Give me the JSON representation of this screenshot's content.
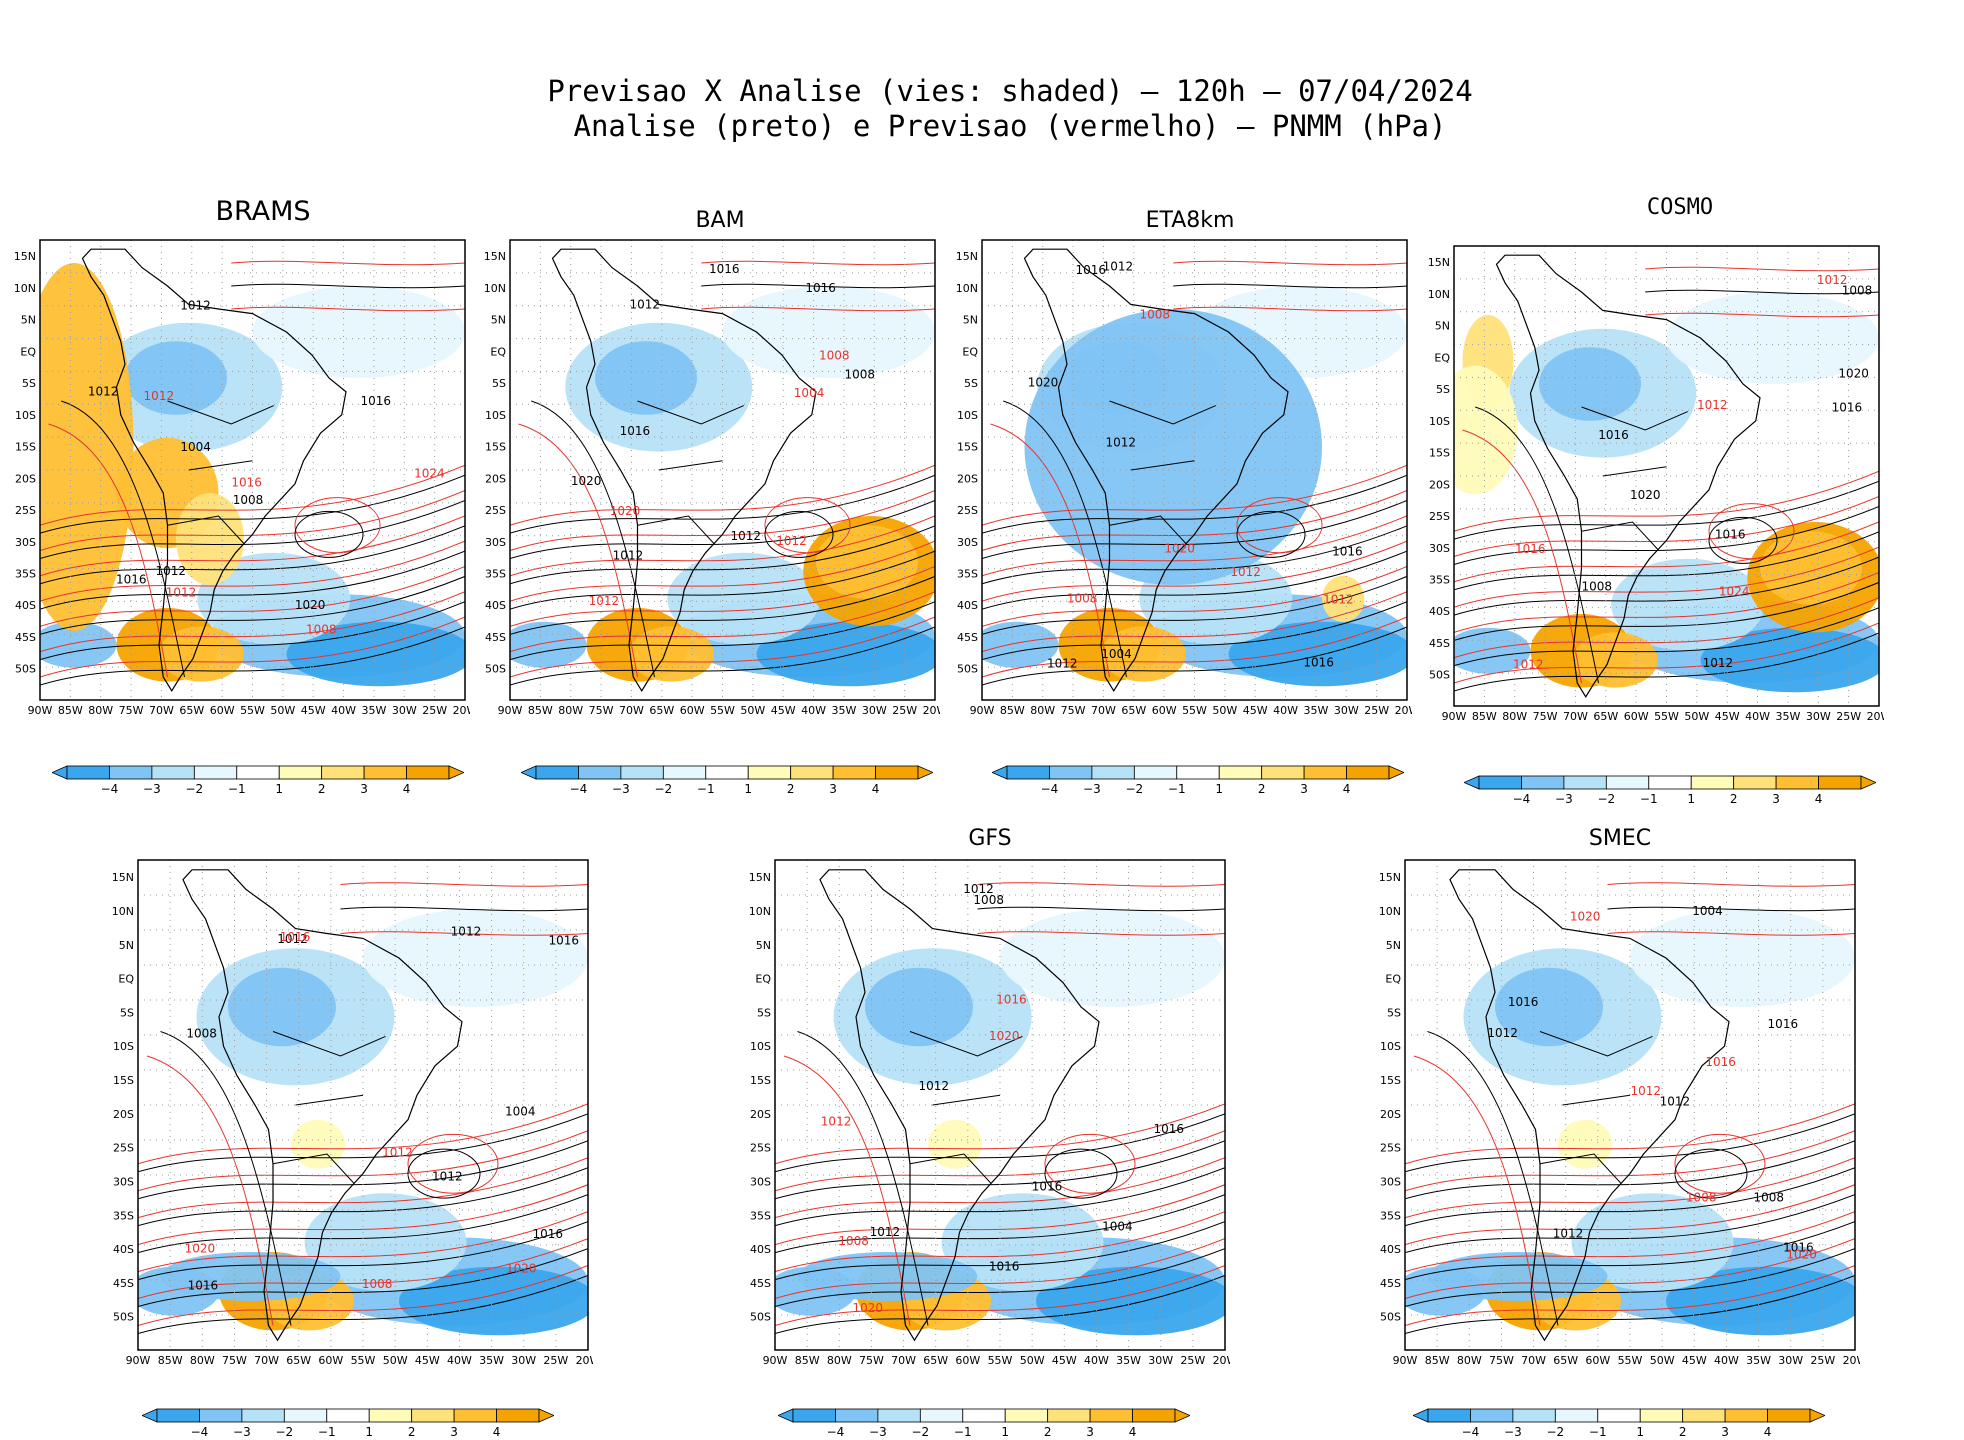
{
  "figure": {
    "title_line1": "Previsao X Analise (vies: shaded) – 120h – 07/04/2024",
    "title_line2": "Analise (preto) e Previsao (vermelho) – PNMM (hPa)"
  },
  "axes": {
    "lat_ticks": [
      "15N",
      "10N",
      "5N",
      "EQ",
      "5S",
      "10S",
      "15S",
      "20S",
      "25S",
      "30S",
      "35S",
      "40S",
      "45S",
      "50S"
    ],
    "lon_ticks": [
      "90W",
      "85W",
      "80W",
      "75W",
      "70W",
      "65W",
      "60W",
      "55W",
      "50W",
      "45W",
      "40W",
      "35W",
      "30W",
      "25W",
      "20W"
    ]
  },
  "colorbar": {
    "labels": [
      "−4",
      "−3",
      "−2",
      "−1",
      "1",
      "2",
      "3",
      "4"
    ],
    "colors": [
      "#3aa6ee",
      "#7fc4f4",
      "#b6e2f8",
      "#e6f7fd",
      "#ffffff",
      "#fffbb8",
      "#ffe17a",
      "#ffbf33",
      "#f5a300"
    ]
  },
  "colors": {
    "analysis_contour": "#000000",
    "forecast_contour": "#e8322b"
  },
  "panels": [
    {
      "name": "BRAMS",
      "labels": [
        "1008",
        "1012",
        "1012",
        "1012",
        "1016",
        "1020",
        "1024",
        "1004",
        "1008",
        "1012",
        "1016",
        "1012",
        "1016"
      ]
    },
    {
      "name": "BAM",
      "labels": [
        "1012",
        "1016",
        "1012",
        "1008",
        "1012",
        "1016",
        "1020",
        "1012",
        "1008",
        "1004",
        "1020",
        "1016",
        "1012"
      ]
    },
    {
      "name": "ETA8km",
      "labels": [
        "1012",
        "1016",
        "1012",
        "1008",
        "1012",
        "1016",
        "1020",
        "1012",
        "1004",
        "1008",
        "1020",
        "1016",
        "1012"
      ]
    },
    {
      "name": "COSMO",
      "labels": [
        "1016",
        "1012",
        "1008",
        "1012",
        "1016",
        "1020",
        "1024",
        "1020",
        "1016",
        "1012",
        "1008",
        "1016",
        "1012"
      ]
    },
    {
      "name": "",
      "labels": [
        "1012",
        "1016",
        "1012",
        "1008",
        "1012",
        "1016",
        "1020",
        "1004",
        "1008",
        "1020",
        "1016",
        "1012",
        "1016"
      ]
    },
    {
      "name": "GFS",
      "labels": [
        "1012",
        "1016",
        "1012",
        "1008",
        "1012",
        "1016",
        "1020",
        "1004",
        "1008",
        "1020",
        "1016",
        "1012",
        "1016"
      ]
    },
    {
      "name": "SMEC",
      "labels": [
        "1012",
        "1016",
        "1012",
        "1008",
        "1012",
        "1016",
        "1020",
        "1004",
        "1008",
        "1020",
        "1016",
        "1012",
        "1016"
      ]
    }
  ]
}
